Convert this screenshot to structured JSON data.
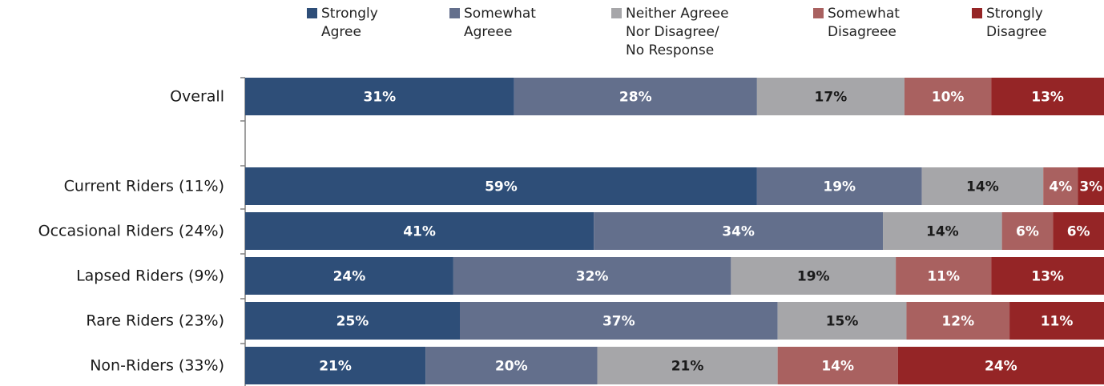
{
  "chart_data": {
    "type": "bar",
    "orientation": "horizontal",
    "stacked": true,
    "value_format": "percent",
    "title": "",
    "xlabel": "",
    "ylabel": "",
    "legend_position": "top",
    "categories": [
      "Overall",
      "Current Riders (11%)",
      "Occasional Riders (24%)",
      "Lapsed Riders (9%)",
      "Rare Riders (23%)",
      "Non-Riders (33%)"
    ],
    "series": [
      {
        "name": "Strongly\nAgree",
        "color": "#2e4e78",
        "values": [
          31,
          59,
          41,
          24,
          25,
          21
        ]
      },
      {
        "name": "Somewhat\nAgreee",
        "color": "#636f8c",
        "values": [
          28,
          19,
          34,
          32,
          37,
          20
        ]
      },
      {
        "name": "Neither Agreee\nNor Disagree/\nNo Response",
        "color": "#a6a6a9",
        "values": [
          17,
          14,
          14,
          19,
          15,
          21
        ]
      },
      {
        "name": "Somewhat\nDisagreee",
        "color": "#a96160",
        "values": [
          10,
          4,
          6,
          11,
          12,
          14
        ]
      },
      {
        "name": "Strongly\nDisagree",
        "color": "#952526",
        "values": [
          13,
          3,
          6,
          13,
          11,
          24
        ]
      }
    ]
  }
}
